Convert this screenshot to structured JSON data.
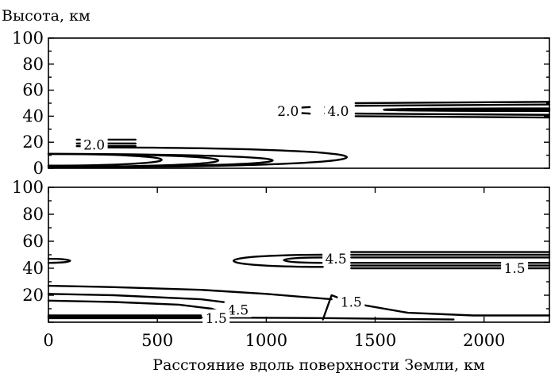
{
  "chart_data": [
    {
      "type": "line",
      "ylabel": "Высота, км",
      "xlim": [
        0,
        2300
      ],
      "ylim": [
        0,
        100
      ],
      "yticks": [
        "0",
        "20",
        "40",
        "60",
        "80",
        "100"
      ],
      "contour_labels": [
        {
          "text": "2.0",
          "x": 210,
          "y": 18
        },
        {
          "text": "2.0",
          "x": 1100,
          "y": 44
        },
        {
          "text": "4.0",
          "x": 1330,
          "y": 44
        }
      ],
      "series": [
        {
          "type": "tongue",
          "x_start": 0,
          "x_end": 520,
          "y_top": 11,
          "y_bottom": 2
        },
        {
          "type": "tongue",
          "x_start": 0,
          "x_end": 780,
          "y_top": 11,
          "y_bottom": 1
        },
        {
          "type": "tongue",
          "x_start": 0,
          "x_end": 1030,
          "y_top": 11,
          "y_bottom": 1
        },
        {
          "type": "tongue",
          "x_start": 210,
          "x_end": 1370,
          "y_top": 16,
          "y_bottom": 1
        },
        {
          "type": "segment",
          "x": [
            130,
            400
          ],
          "y": [
            22,
            22
          ]
        },
        {
          "type": "segment",
          "x": [
            130,
            400
          ],
          "y": [
            19,
            19
          ]
        },
        {
          "type": "segment",
          "x": [
            130,
            400
          ],
          "y": [
            17,
            17
          ]
        },
        {
          "type": "segment",
          "x": [
            1100,
            1200
          ],
          "y": [
            46,
            47
          ]
        },
        {
          "type": "segment",
          "x": [
            1100,
            1200
          ],
          "y": [
            43,
            42
          ]
        },
        {
          "type": "segment",
          "x": [
            1270,
            1340
          ],
          "y": [
            47,
            47
          ]
        },
        {
          "type": "segment",
          "x": [
            1270,
            1340
          ],
          "y": [
            42,
            42
          ]
        },
        {
          "type": "segment",
          "x": [
            1410,
            2300
          ],
          "y": [
            50,
            51
          ]
        },
        {
          "type": "segment",
          "x": [
            1410,
            2300
          ],
          "y": [
            48,
            49
          ]
        },
        {
          "type": "segment",
          "x": [
            1410,
            2300
          ],
          "y": [
            42,
            41
          ]
        },
        {
          "type": "segment",
          "x": [
            1410,
            2300
          ],
          "y": [
            40,
            39
          ]
        },
        {
          "type": "tongue_left",
          "x_start": 2300,
          "x_end": 1540,
          "y_top": 46,
          "y_bottom": 44
        },
        {
          "type": "tongue_left",
          "x_start": 2300,
          "x_end": 1720,
          "y_top": 45.5,
          "y_bottom": 44.5
        }
      ]
    },
    {
      "type": "line",
      "xlabel": "Расстояние вдоль поверхности Земли, км",
      "xlim": [
        0,
        2300
      ],
      "ylim": [
        0,
        100
      ],
      "xticks": [
        "0",
        "500",
        "1000",
        "1500",
        "2000"
      ],
      "yticks": [
        "20",
        "40",
        "60",
        "80",
        "100"
      ],
      "contour_labels": [
        {
          "text": "4.5",
          "x": 1320,
          "y": 47
        },
        {
          "text": "1.5",
          "x": 2140,
          "y": 40
        },
        {
          "text": "1.5",
          "x": 1390,
          "y": 15
        },
        {
          "text": "4.5",
          "x": 870,
          "y": 9
        },
        {
          "text": "1.5",
          "x": 770,
          "y": 3
        }
      ],
      "series": [
        {
          "type": "tongue_left",
          "x_start": 0,
          "x_end": 100,
          "y_top": 47,
          "y_bottom": 44
        },
        {
          "type": "tongue_left",
          "x_start": 1260,
          "x_end": 850,
          "y_top": 50,
          "y_bottom": 41
        },
        {
          "type": "tongue_left",
          "x_start": 1260,
          "x_end": 1080,
          "y_top": 48,
          "y_bottom": 44
        },
        {
          "type": "segment",
          "x": [
            1390,
            2300
          ],
          "y": [
            52,
            52
          ]
        },
        {
          "type": "segment",
          "x": [
            1390,
            2300
          ],
          "y": [
            50,
            50
          ]
        },
        {
          "type": "segment",
          "x": [
            1390,
            2300
          ],
          "y": [
            48,
            48
          ]
        },
        {
          "type": "segment",
          "x": [
            1390,
            2300
          ],
          "y": [
            44,
            44
          ]
        },
        {
          "type": "segment",
          "x": [
            1390,
            2300
          ],
          "y": [
            42,
            42
          ]
        },
        {
          "type": "segment",
          "x": [
            1390,
            2300
          ],
          "y": [
            40,
            40
          ]
        },
        {
          "type": "polyline",
          "x": [
            0,
            300,
            700,
            1000,
            1300
          ],
          "y": [
            27,
            26,
            24,
            21,
            17
          ]
        },
        {
          "type": "polyline",
          "x": [
            0,
            300,
            700,
            850,
            920
          ],
          "y": [
            21,
            20,
            17,
            14,
            10
          ]
        },
        {
          "type": "polyline",
          "x": [
            0,
            300,
            600,
            750,
            820
          ],
          "y": [
            16,
            15,
            13,
            10,
            6
          ]
        },
        {
          "type": "polyline",
          "x": [
            1260,
            1300,
            1400,
            1650,
            1950,
            2300
          ],
          "y": [
            2,
            20,
            14,
            7,
            5,
            5
          ]
        },
        {
          "type": "polyline",
          "x": [
            0,
            700,
            1300,
            1860
          ],
          "y": [
            4,
            3.5,
            3,
            2
          ]
        },
        {
          "type": "polyline",
          "x": [
            0,
            700
          ],
          "y": [
            5,
            5
          ]
        },
        {
          "type": "polyline",
          "x": [
            0,
            700
          ],
          "y": [
            4,
            4
          ]
        },
        {
          "type": "polyline",
          "x": [
            0,
            700
          ],
          "y": [
            3,
            3
          ]
        }
      ]
    }
  ]
}
